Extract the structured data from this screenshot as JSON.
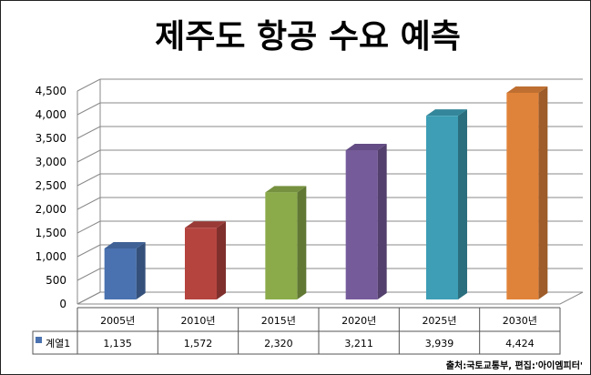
{
  "chart_data": {
    "type": "bar",
    "title": "제주도 항공 수요 예측",
    "categories": [
      "2005년",
      "2010년",
      "2015년",
      "2020년",
      "2025년",
      "2030년"
    ],
    "series": [
      {
        "name": "계열1",
        "values": [
          1135,
          1572,
          2320,
          3211,
          3939,
          4424
        ],
        "value_labels": [
          "1,135",
          "1,572",
          "2,320",
          "3,211",
          "3,939",
          "4,424"
        ]
      }
    ],
    "bar_colors": [
      "#4a72b0",
      "#b5443f",
      "#8bab4a",
      "#765b9b",
      "#3d9eb5",
      "#e0833a"
    ],
    "y_ticks": [
      "0",
      "500",
      "1,000",
      "1,500",
      "2,000",
      "2,500",
      "3,000",
      "3,500",
      "4,000",
      "4,500"
    ],
    "ylim": [
      0,
      4500
    ],
    "grid": true,
    "data_table": true,
    "source": "출처:국토교통부, 편집:'아이엠피터'"
  }
}
